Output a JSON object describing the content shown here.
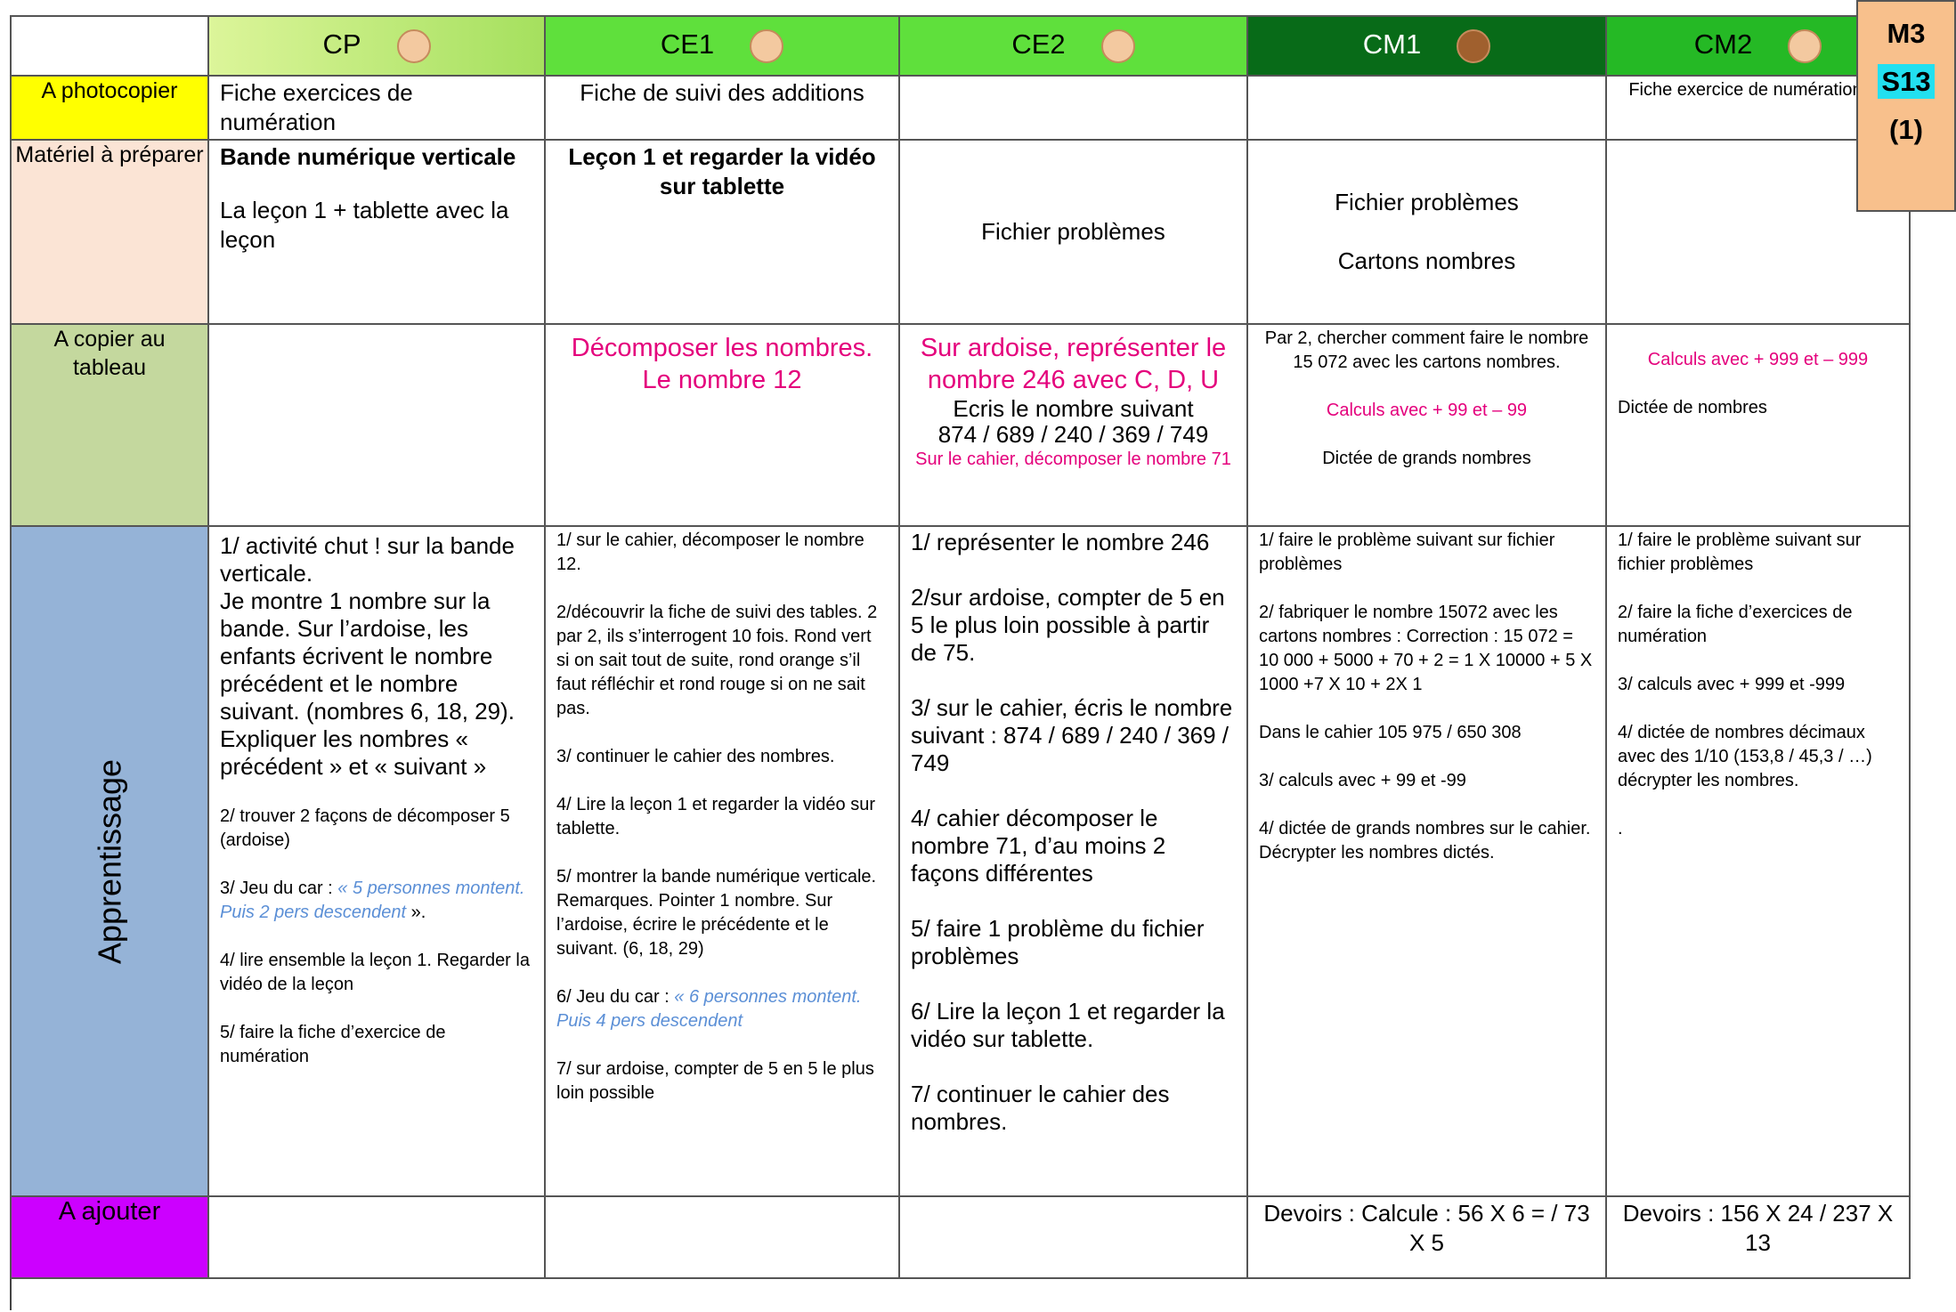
{
  "badge": {
    "period": "M3",
    "week": "S13",
    "session": "(1)"
  },
  "columns": [
    "CP",
    "CE1",
    "CE2",
    "CM1",
    "CM2"
  ],
  "rows": [
    {
      "label": "A  photocopier",
      "cells": [
        [
          "Fiche exercices de numération"
        ],
        [
          "Fiche de suivi des additions"
        ],
        [],
        [],
        [
          "Fiche exercice de numération"
        ]
      ]
    },
    {
      "label": "Matériel à préparer",
      "cells": [
        [
          "Bande numérique verticale",
          "La leçon 1 + tablette avec la leçon"
        ],
        [
          "Leçon 1 et regarder la vidéo sur tablette"
        ],
        [
          "Fichier problèmes"
        ],
        [
          "Fichier problèmes",
          "Cartons nombres"
        ],
        []
      ]
    },
    {
      "label": "A copier au tableau",
      "cells": [
        [],
        [
          "Décomposer les nombres. Le nombre 12"
        ],
        [
          "Sur ardoise, représenter le nombre 246 avec C, D, U",
          "Ecris le nombre suivant",
          "874 / 689 / 240 / 369 / 749",
          "Sur le cahier, décomposer le nombre 71"
        ],
        [
          "Par 2, chercher comment faire le nombre  15 072 avec les cartons nombres.",
          "Calculs avec + 99 et – 99",
          "Dictée de grands nombres"
        ],
        [
          "Calculs avec + 999 et – 999",
          "Dictée de nombres"
        ]
      ]
    },
    {
      "label": "Apprentissage",
      "cells": [
        [
          "1/ activité chut ! sur la bande verticale.",
          "Je montre 1 nombre sur la bande. Sur l’ardoise, les enfants écrivent le nombre précédent et le nombre suivant. (nombres 6, 18, 29).",
          "Expliquer les nombres « précédent » et « suivant »",
          "2/ trouver 2 façons de décomposer 5 (ardoise)",
          [
            "3/ Jeu du car : ",
            "« 5 personnes montent. Puis 2 pers descendent",
            " »."
          ],
          "4/ lire ensemble la leçon 1. Regarder la vidéo de la leçon",
          "5/ faire la fiche d’exercice de numération"
        ],
        [
          "1/ sur le cahier, décomposer le nombre 12.",
          "2/découvrir la fiche de suivi des tables. 2 par 2, ils s’interrogent 10 fois. Rond vert si on sait tout de suite, rond orange s’il faut réfléchir et rond rouge si on ne sait pas.",
          "3/ continuer le cahier des nombres.",
          "4/ Lire la leçon 1 et regarder la vidéo sur tablette.",
          "5/ montrer la bande numérique verticale. Remarques. Pointer 1 nombre. Sur l’ardoise, écrire le précédente et le suivant. (6, 18, 29)",
          [
            "6/ Jeu du car : ",
            "« 6 personnes montent. Puis 4 pers descendent"
          ],
          "7/ sur ardoise, compter de 5 en 5 le plus loin possible"
        ],
        [
          "1/ représenter le nombre 246",
          "2/sur ardoise, compter de 5 en 5 le plus loin possible à partir de 75.",
          "3/ sur le cahier, écris le nombre suivant : 874 / 689 / 240 / 369 / 749",
          "4/ cahier décomposer le nombre 71, d’au moins 2 façons différentes",
          "5/ faire 1 problème du fichier problèmes",
          "6/ Lire la leçon 1 et regarder la vidéo sur tablette.",
          "7/ continuer le cahier des nombres."
        ],
        [
          "1/ faire le problème suivant sur fichier problèmes",
          "2/ fabriquer le nombre 15072 avec les cartons nombres : Correction : 15 072 = 10 000 + 5000 + 70 + 2 = 1 X 10000 + 5 X 1000 +7 X 10 + 2X 1",
          "Dans le cahier 105 975 / 650 308",
          "3/ calculs avec + 99 et -99",
          "4/ dictée de grands nombres sur le cahier. Décrypter les nombres dictés."
        ],
        [
          "1/ faire le problème suivant sur fichier problèmes",
          "2/ faire la fiche d’exercices de numération",
          "3/ calculs avec + 999 et -999",
          "4/ dictée de nombres décimaux avec des 1/10 (153,8 / 45,3 / …) décrypter les nombres.",
          "."
        ]
      ]
    },
    {
      "label": "A ajouter",
      "cells": [
        [],
        [],
        [],
        [
          "Devoirs : Calcule : 56 X 6 = / 73 X 5"
        ],
        [
          "Devoirs : 156 X 24 / 237 X 13"
        ]
      ]
    }
  ]
}
